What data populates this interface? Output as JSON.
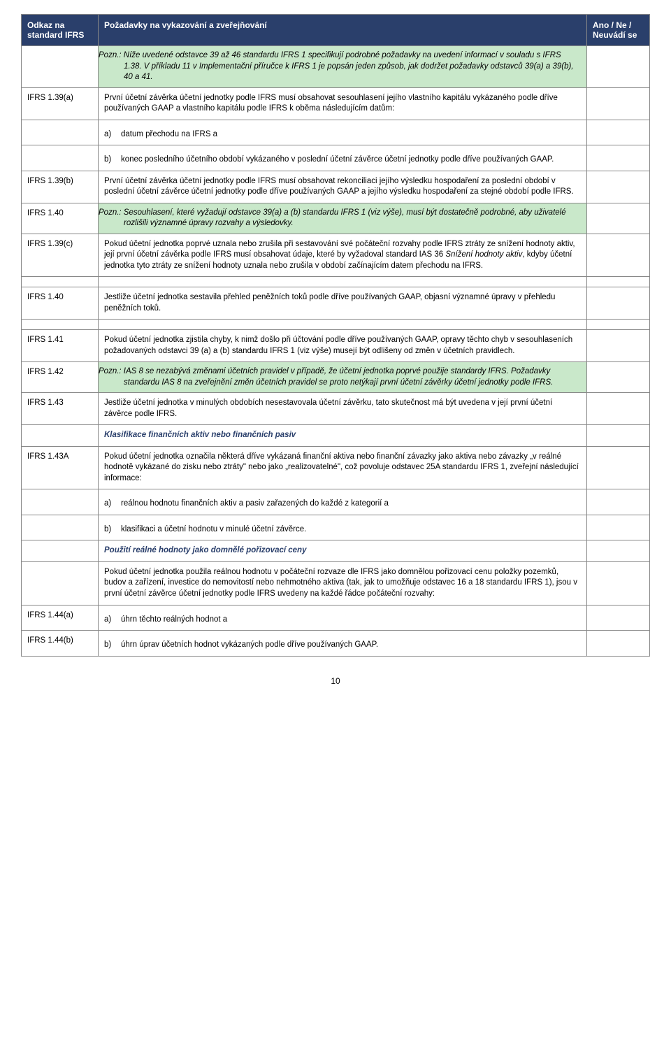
{
  "colors": {
    "header_bg": "#2a3f6b",
    "header_text": "#ffffff",
    "border": "#888888",
    "note_bg": "#c9e8ca",
    "heading_blue": "#2a3f6b"
  },
  "header": {
    "col1": "Odkaz na standard IFRS",
    "col2": "Požadavky na vykazování a zveřejňování",
    "col3": "Ano / Ne / Neuvádí se"
  },
  "rows": [
    {
      "ref": "",
      "type": "note",
      "text": "Pozn.: Níže uvedené odstavce 39 až 46 standardu IFRS 1 specifikují podrobné požadavky na uvedení informací v souladu s IFRS 1.38. V příkladu 11 v Implementační příručce k IFRS 1 je popsán jeden způsob, jak dodržet požadavky odstavců 39(a) a 39(b), 40 a 41."
    },
    {
      "ref": "IFRS 1.39(a)",
      "type": "plain_with_sub",
      "text": "První účetní závěrka účetní jednotky podle IFRS musí obsahovat sesouhlasení jejího vlastního kapitálu vykázaného podle dříve používaných GAAP a vlastního kapitálu podle IFRS k oběma následujícím datům:",
      "sub": [
        {
          "label": "a)",
          "text": "datum přechodu na IFRS a"
        },
        {
          "label": "b)",
          "text": "konec posledního účetního období vykázaného v poslední účetní závěrce účetní jednotky podle dříve používaných GAAP."
        }
      ]
    },
    {
      "ref": "IFRS 1.39(b)",
      "type": "plain",
      "text": "První účetní závěrka účetní jednotky podle IFRS musí obsahovat rekonciliaci jejího výsledku hospodaření za poslední období v poslední účetní závěrce účetní jednotky podle dříve používaných GAAP a jejího výsledku hospodaření za stejné období podle IFRS."
    },
    {
      "ref": "IFRS 1.40",
      "type": "note",
      "text": "Pozn.: Sesouhlasení, které vyžadují odstavce 39(a) a (b) standardu IFRS 1 (viz výše), musí být dostatečně podrobné, aby uživatelé rozlišili významné úpravy rozvahy a výsledovky."
    },
    {
      "ref": "IFRS 1.39(c)",
      "type": "plain",
      "text": "Pokud účetní jednotka poprvé uznala nebo zrušila při sestavování své počáteční rozvahy podle IFRS ztráty ze snížení hodnoty aktiv, její první účetní závěrka podle IFRS musí obsahovat údaje, které by vyžadoval standard IAS 36 Snížení hodnoty aktiv, kdyby účetní jednotka tyto ztráty ze snížení hodnoty uznala nebo zrušila v období začínajícím datem přechodu na IFRS.",
      "italic_part": "Snížení hodnoty aktiv"
    }
  ],
  "rows2": [
    {
      "ref": "IFRS 1.40",
      "type": "plain",
      "text": "Jestliže účetní jednotka sestavila přehled peněžních toků podle dříve používaných GAAP, objasní významné úpravy v přehledu peněžních toků."
    }
  ],
  "rows3": [
    {
      "ref": "IFRS 1.41",
      "type": "plain",
      "text": "Pokud účetní jednotka zjistila chyby, k nimž došlo při účtování podle dříve používaných GAAP, opravy těchto chyb v sesouhlaseních požadovaných odstavci 39 (a) a (b) standardu IFRS 1 (viz výše) musejí být odlišeny od změn v účetních pravidlech."
    },
    {
      "ref": "IFRS 1.42",
      "type": "note",
      "text": "Pozn.: IAS 8 se nezabývá změnami účetních pravidel v případě, že účetní jednotka poprvé použije standardy IFRS. Požadavky standardu IAS 8 na zveřejnění změn účetních pravidel se proto netýkají první účetní závěrky účetní jednotky podle IFRS."
    },
    {
      "ref": "IFRS 1.43",
      "type": "plain_heading_after",
      "text": "Jestliže účetní jednotka v minulých obdobích nesestavovala účetní závěrku, tato skutečnost má být uvedena v její první účetní závěrce podle IFRS.",
      "heading": "Klasifikace  finančních aktiv nebo  finančních pasiv"
    },
    {
      "ref": "IFRS 1.43A",
      "type": "plain_with_sub",
      "text": "Pokud účetní  jednotka označila některá dříve vykázaná finanční aktiva nebo finanční závazky jako aktiva nebo závazky „v reálné hodnotě vykázané do zisku nebo ztráty\" nebo jako „realizovatelné\", což povoluje odstavec 25A standardu IFRS 1, zveřejní následující informace:",
      "sub": [
        {
          "label": "a)",
          "text": "reálnou hodnotu finančních aktiv a pasiv zařazených do každé z kategorií a"
        },
        {
          "label": "b)",
          "text": "klasifikaci a účetní hodnotu v minulé účetní závěrce."
        }
      ]
    },
    {
      "ref": "",
      "type": "heading_plain",
      "heading": "Použití reálné hodnoty jako domnělé pořizovací ceny",
      "text": "Pokud účetní jednotka použila reálnou hodnotu v počáteční rozvaze dle IFRS jako domnělou pořizovací cenu položky pozemků, budov a zařízení, investice do nemovitostí nebo nehmotného aktiva (tak, jak to umožňuje odstavec 16 a 18 standardu IFRS 1), jsou v první účetní závěrce účetní jednotky podle IFRS uvedeny na každé řádce počáteční rozvahy:"
    },
    {
      "ref": "IFRS 1.44(a)",
      "type": "sub_only",
      "label": "a)",
      "text": "úhrn těchto reálných hodnot a"
    },
    {
      "ref": "IFRS 1.44(b)",
      "type": "sub_only",
      "label": "b)",
      "text": "úhrn úprav účetních hodnot vykázaných podle dříve používaných GAAP."
    }
  ],
  "page_number": "10"
}
